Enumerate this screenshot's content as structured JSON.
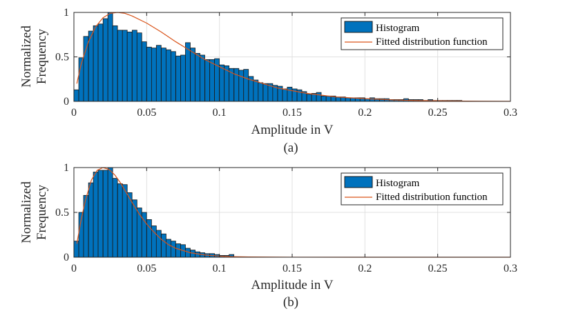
{
  "chart_data": [
    {
      "type": "bar",
      "panel": "(a)",
      "xlabel": "Amplitude in V",
      "ylabel_lines": [
        "Normalized",
        "Frequency"
      ],
      "xlim": [
        0,
        0.3
      ],
      "ylim": [
        0,
        1
      ],
      "xticks": [
        0,
        0.05,
        0.1,
        0.15,
        0.2,
        0.25,
        0.3
      ],
      "xtick_labels": [
        "0",
        "0.05",
        "0.1",
        "0.15",
        "0.2",
        "0.25",
        "0.3"
      ],
      "yticks": [
        0,
        0.5,
        1
      ],
      "ytick_labels": [
        "0",
        "0.5",
        "1"
      ],
      "grid": true,
      "legend": {
        "placement": "top-right",
        "entries": [
          "Histogram",
          "Fitted distribution function"
        ]
      },
      "colors": {
        "bar": "#0072BD",
        "fit": "#D95319",
        "grid": "#e0e0e0"
      },
      "bin_width": 0.0033,
      "bin_centers": [
        0.0017,
        0.005,
        0.0083,
        0.0117,
        0.015,
        0.0183,
        0.0217,
        0.025,
        0.0283,
        0.0317,
        0.035,
        0.0383,
        0.0417,
        0.045,
        0.0483,
        0.0517,
        0.055,
        0.0583,
        0.0617,
        0.065,
        0.0683,
        0.0717,
        0.075,
        0.0783,
        0.0817,
        0.085,
        0.0883,
        0.0917,
        0.095,
        0.0983,
        0.1017,
        0.105,
        0.1083,
        0.1117,
        0.115,
        0.1183,
        0.1217,
        0.125,
        0.1283,
        0.1317,
        0.135,
        0.1383,
        0.1417,
        0.145,
        0.1483,
        0.1517,
        0.155,
        0.1583,
        0.1617,
        0.165,
        0.1683,
        0.1717,
        0.175,
        0.1783,
        0.1817,
        0.185,
        0.1883,
        0.1917,
        0.195,
        0.1983,
        0.2017,
        0.205,
        0.2083,
        0.2117,
        0.215,
        0.2183,
        0.2217,
        0.225,
        0.2283,
        0.2317,
        0.235,
        0.2383,
        0.2417,
        0.245,
        0.2483,
        0.2517,
        0.255,
        0.2583,
        0.2617,
        0.265
      ],
      "values": [
        0.13,
        0.49,
        0.73,
        0.79,
        0.85,
        0.87,
        0.93,
        1.0,
        0.85,
        0.8,
        0.8,
        0.78,
        0.8,
        0.77,
        0.67,
        0.61,
        0.6,
        0.63,
        0.6,
        0.58,
        0.56,
        0.51,
        0.52,
        0.66,
        0.6,
        0.54,
        0.52,
        0.47,
        0.47,
        0.48,
        0.41,
        0.4,
        0.37,
        0.37,
        0.35,
        0.36,
        0.28,
        0.24,
        0.21,
        0.2,
        0.2,
        0.18,
        0.17,
        0.14,
        0.16,
        0.14,
        0.13,
        0.11,
        0.08,
        0.09,
        0.1,
        0.06,
        0.06,
        0.06,
        0.05,
        0.05,
        0.04,
        0.04,
        0.04,
        0.04,
        0.03,
        0.04,
        0.03,
        0.03,
        0.03,
        0.02,
        0.02,
        0.02,
        0.03,
        0.02,
        0.02,
        0.02,
        0.01,
        0.02,
        0.01,
        0.01,
        0.01,
        0.01,
        0.01,
        0.01
      ],
      "fit": {
        "x": [
          0.002,
          0.005,
          0.01,
          0.015,
          0.02,
          0.025,
          0.03,
          0.035,
          0.04,
          0.05,
          0.06,
          0.07,
          0.08,
          0.09,
          0.1,
          0.11,
          0.12,
          0.13,
          0.14,
          0.15,
          0.16,
          0.17,
          0.18,
          0.19,
          0.2,
          0.22,
          0.24,
          0.26,
          0.28,
          0.3
        ],
        "y": [
          0.2,
          0.42,
          0.67,
          0.84,
          0.94,
          0.99,
          1.0,
          0.99,
          0.96,
          0.88,
          0.78,
          0.67,
          0.57,
          0.47,
          0.39,
          0.31,
          0.25,
          0.2,
          0.15,
          0.12,
          0.09,
          0.07,
          0.05,
          0.04,
          0.03,
          0.015,
          0.008,
          0.004,
          0.002,
          0.001
        ]
      }
    },
    {
      "type": "bar",
      "panel": "(b)",
      "xlabel": "Amplitude in V",
      "ylabel_lines": [
        "Normalized",
        "Frequency"
      ],
      "xlim": [
        0,
        0.3
      ],
      "ylim": [
        0,
        1
      ],
      "xticks": [
        0,
        0.05,
        0.1,
        0.15,
        0.2,
        0.25,
        0.3
      ],
      "xtick_labels": [
        "0",
        "0.05",
        "0.1",
        "0.15",
        "0.2",
        "0.25",
        "0.3"
      ],
      "yticks": [
        0,
        0.5,
        1
      ],
      "ytick_labels": [
        "0",
        "0.5",
        "1"
      ],
      "grid": true,
      "legend": {
        "placement": "top-right",
        "entries": [
          "Histogram",
          "Fitted distribution function"
        ]
      },
      "colors": {
        "bar": "#0072BD",
        "fit": "#D95319",
        "grid": "#e0e0e0"
      },
      "bin_width": 0.0033,
      "bin_centers": [
        0.0017,
        0.005,
        0.0083,
        0.0117,
        0.015,
        0.0183,
        0.0217,
        0.025,
        0.0283,
        0.0317,
        0.035,
        0.0383,
        0.0417,
        0.045,
        0.0483,
        0.0517,
        0.055,
        0.0583,
        0.0617,
        0.065,
        0.0683,
        0.0717,
        0.075,
        0.0783,
        0.0817,
        0.085,
        0.0883,
        0.0917,
        0.095,
        0.0983,
        0.1017,
        0.105,
        0.1083
      ],
      "values": [
        0.18,
        0.5,
        0.69,
        0.83,
        0.95,
        0.97,
        0.97,
        1.0,
        0.88,
        0.82,
        0.81,
        0.72,
        0.64,
        0.55,
        0.5,
        0.42,
        0.35,
        0.3,
        0.26,
        0.2,
        0.18,
        0.15,
        0.14,
        0.1,
        0.08,
        0.06,
        0.05,
        0.04,
        0.04,
        0.03,
        0.02,
        0.02,
        0.03
      ],
      "fit": {
        "x": [
          0.002,
          0.005,
          0.008,
          0.012,
          0.016,
          0.02,
          0.024,
          0.028,
          0.032,
          0.036,
          0.04,
          0.045,
          0.05,
          0.055,
          0.06,
          0.065,
          0.07,
          0.08,
          0.09,
          0.1,
          0.11,
          0.12,
          0.15,
          0.2,
          0.3
        ],
        "y": [
          0.15,
          0.42,
          0.64,
          0.86,
          0.97,
          1.0,
          0.98,
          0.92,
          0.83,
          0.72,
          0.61,
          0.48,
          0.37,
          0.28,
          0.2,
          0.14,
          0.1,
          0.05,
          0.025,
          0.012,
          0.006,
          0.003,
          0.0005,
          0.0001,
          0.0
        ]
      }
    }
  ],
  "captions": [
    "(a)",
    "(b)"
  ]
}
